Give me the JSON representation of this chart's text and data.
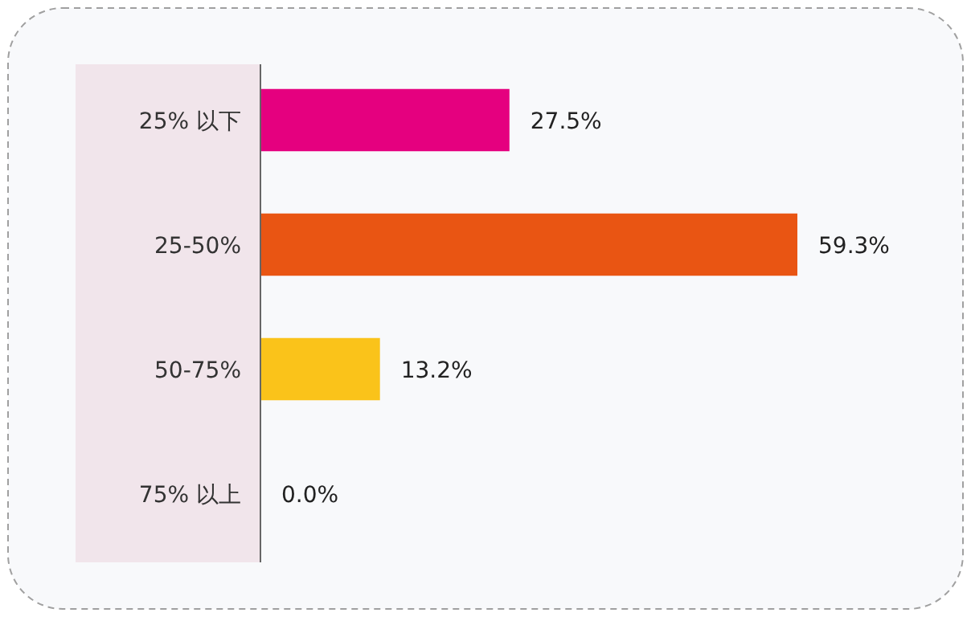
{
  "chart_data": {
    "type": "bar",
    "orientation": "horizontal",
    "categories": [
      "25% 以下",
      "25-50%",
      "50-75%",
      "75% 以上"
    ],
    "values": [
      27.5,
      59.3,
      13.2,
      0.0
    ],
    "colors": [
      "#e5007f",
      "#e95513",
      "#fac31a",
      null
    ],
    "data_labels": true,
    "value_labels": [
      "27.5%",
      "59.3%",
      "13.2%",
      "0.0%"
    ]
  }
}
